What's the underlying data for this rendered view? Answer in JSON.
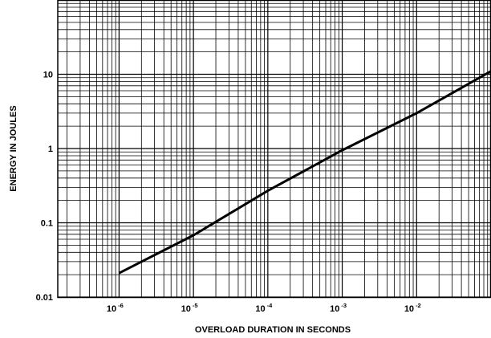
{
  "chart_data": {
    "type": "line",
    "title": "",
    "xlabel": "OVERLOAD DURATION IN SECONDS",
    "ylabel": "ENERGY IN JOULES",
    "x_scale": "log",
    "y_scale": "log",
    "xlim": [
      1.5e-07,
      0.1
    ],
    "ylim": [
      0.01,
      100
    ],
    "grid": true,
    "x_ticks": [
      {
        "base": "10",
        "exp": "-6",
        "value": 1e-06
      },
      {
        "base": "10",
        "exp": "-5",
        "value": 1e-05
      },
      {
        "base": "10",
        "exp": "-4",
        "value": 0.0001
      },
      {
        "base": "10",
        "exp": "-3",
        "value": 0.001
      },
      {
        "base": "10",
        "exp": "-2",
        "value": 0.01
      }
    ],
    "y_ticks": [
      {
        "label": "0.01",
        "value": 0.01
      },
      {
        "label": "0.1",
        "value": 0.1
      },
      {
        "label": "1",
        "value": 1
      },
      {
        "label": "10",
        "value": 10
      }
    ],
    "series": [
      {
        "x": [
          1e-06,
          1e-05,
          0.0001,
          0.001,
          0.01,
          0.1
        ],
        "y": [
          0.021,
          0.068,
          0.27,
          0.95,
          3.0,
          11
        ]
      }
    ]
  }
}
